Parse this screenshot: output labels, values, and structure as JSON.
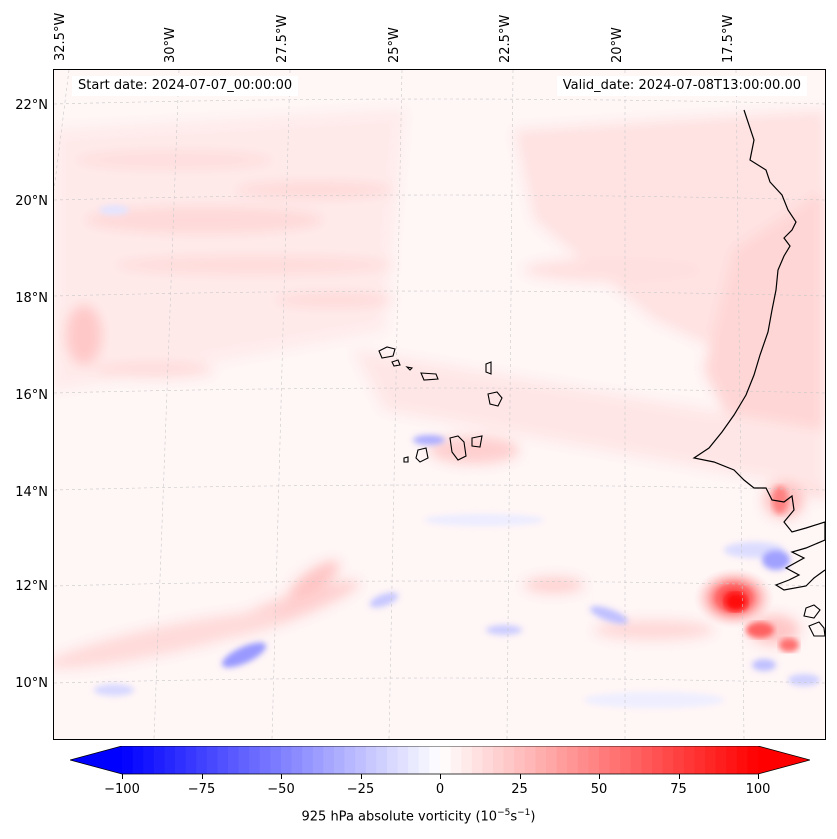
{
  "map": {
    "start_label": "Start date: 2024-07-07_00:00:00",
    "valid_label": "Valid_date: 2024-07-08T13:00:00.00",
    "lon_labels": [
      "32.5°W",
      "30°W",
      "27.5°W",
      "25°W",
      "22.5°W",
      "20°W",
      "17.5°W"
    ],
    "lat_labels": [
      "22°N",
      "20°N",
      "18°N",
      "16°N",
      "14°N",
      "12°N",
      "10°N"
    ],
    "features": {
      "west_africa_coast": "coastline",
      "cape_verde_islands": "islands",
      "strong_positive_vortex": "12°N, 17°W",
      "field_bias": "weak positive vorticity, banded structures"
    },
    "colors": {
      "negative_max": "#0000ff",
      "neutral": "#ffffff",
      "positive_max": "#ff0000",
      "coastline": "#000000",
      "gridline": "#c8c8c8"
    }
  },
  "colorbar": {
    "ticks": [
      "−100",
      "−75",
      "−50",
      "−25",
      "0",
      "25",
      "50",
      "75",
      "100"
    ],
    "label": "925 hPa absolute vorticity (10",
    "label_exp1": "−5",
    "label_mid": "s",
    "label_exp2": "−1",
    "label_end": ")",
    "range": [
      -100,
      100
    ],
    "levels": 60
  }
}
